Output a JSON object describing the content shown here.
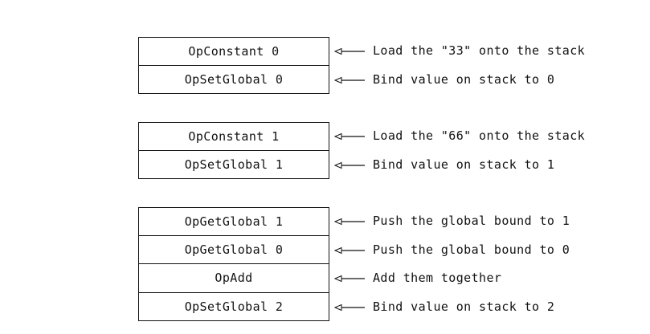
{
  "groups": [
    {
      "rows": [
        {
          "instruction": "OpConstant 0",
          "comment": "Load the \"33\" onto the stack"
        },
        {
          "instruction": "OpSetGlobal 0",
          "comment": "Bind value on stack to 0"
        }
      ]
    },
    {
      "rows": [
        {
          "instruction": "OpConstant 1",
          "comment": "Load the \"66\" onto the stack"
        },
        {
          "instruction": "OpSetGlobal 1",
          "comment": "Bind value on stack to 1"
        }
      ]
    },
    {
      "rows": [
        {
          "instruction": "OpGetGlobal 1",
          "comment": "Push the global bound to 1"
        },
        {
          "instruction": "OpGetGlobal 0",
          "comment": "Push the global bound to 0"
        },
        {
          "instruction": "OpAdd",
          "comment": "Add them together"
        },
        {
          "instruction": "OpSetGlobal 2",
          "comment": "Bind value on stack to 2"
        }
      ]
    }
  ]
}
